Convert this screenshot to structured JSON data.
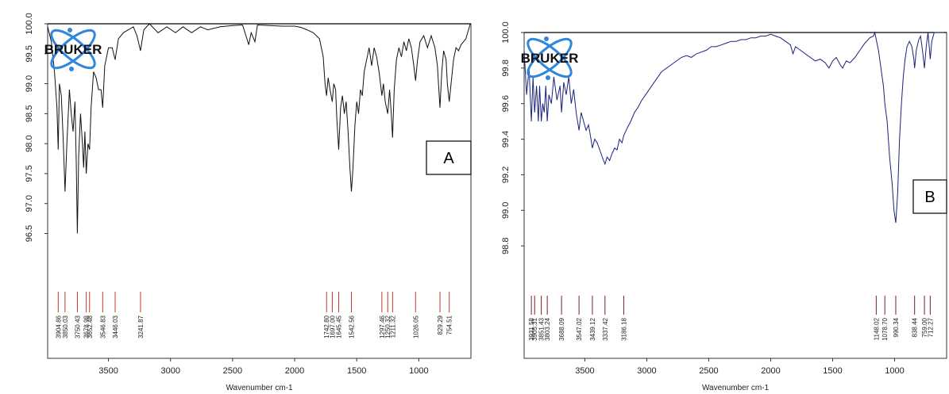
{
  "chart_data": [
    {
      "type": "line",
      "panel_label": "A",
      "logo_text": "BRUKER",
      "xlabel": "Wavenumber cm-1",
      "ylabel": "",
      "xlim": [
        3990,
        580
      ],
      "ylim": [
        95.7,
        100.0
      ],
      "x_ticks": [
        3500,
        3000,
        2500,
        2000,
        1500,
        1000
      ],
      "x_tick_labels": [
        "3500",
        "3000",
        "2500",
        "2000",
        "1500",
        "1000"
      ],
      "y_ticks": [
        96.5,
        97.0,
        97.5,
        98.0,
        98.5,
        99.0,
        99.5,
        100.0
      ],
      "y_tick_labels": [
        "96.5",
        "97.0",
        "97.5",
        "98.0",
        "98.5",
        "99.0",
        "99.5",
        "100.0"
      ],
      "line_color": "#111111",
      "peak_marker_color": "#c0392b",
      "peaks": [
        {
          "x": 3904.86,
          "label": "3904.86"
        },
        {
          "x": 3850.03,
          "label": "3850.03"
        },
        {
          "x": 3750.43,
          "label": "3750.43"
        },
        {
          "x": 3678.98,
          "label": "3678.98"
        },
        {
          "x": 3652.48,
          "label": "3652.48"
        },
        {
          "x": 3546.83,
          "label": "3546.83"
        },
        {
          "x": 3446.03,
          "label": "3446.03"
        },
        {
          "x": 3241.87,
          "label": "3241.87"
        },
        {
          "x": 1742.8,
          "label": "1742.80"
        },
        {
          "x": 1697.0,
          "label": "1697.00"
        },
        {
          "x": 1645.45,
          "label": "1645.45"
        },
        {
          "x": 1542.56,
          "label": "1542.56"
        },
        {
          "x": 1297.46,
          "label": "1297.46"
        },
        {
          "x": 1250.32,
          "label": "1250.32"
        },
        {
          "x": 1211.32,
          "label": "1211.32"
        },
        {
          "x": 1026.05,
          "label": "1026.05"
        },
        {
          "x": 829.29,
          "label": "829.29"
        },
        {
          "x": 754.51,
          "label": "754.51"
        }
      ],
      "spectrum": [
        [
          3990,
          99.95
        ],
        [
          3960,
          99.7
        ],
        [
          3935,
          99.2
        ],
        [
          3915,
          98.6
        ],
        [
          3904.86,
          97.9
        ],
        [
          3895,
          99.0
        ],
        [
          3880,
          98.8
        ],
        [
          3865,
          98.1
        ],
        [
          3850.03,
          97.2
        ],
        [
          3835,
          98.0
        ],
        [
          3815,
          98.9
        ],
        [
          3800,
          98.5
        ],
        [
          3785,
          98.2
        ],
        [
          3770,
          98.7
        ],
        [
          3760,
          97.7
        ],
        [
          3750.43,
          96.5
        ],
        [
          3740,
          97.8
        ],
        [
          3725,
          98.5
        ],
        [
          3710,
          98.0
        ],
        [
          3700,
          97.6
        ],
        [
          3690,
          98.2
        ],
        [
          3678.98,
          97.5
        ],
        [
          3665,
          98.0
        ],
        [
          3652.48,
          97.9
        ],
        [
          3640,
          98.6
        ],
        [
          3620,
          99.2
        ],
        [
          3600,
          99.1
        ],
        [
          3580,
          98.9
        ],
        [
          3560,
          98.9
        ],
        [
          3546.83,
          98.6
        ],
        [
          3530,
          99.3
        ],
        [
          3500,
          99.6
        ],
        [
          3470,
          99.6
        ],
        [
          3446.03,
          99.4
        ],
        [
          3420,
          99.75
        ],
        [
          3380,
          99.85
        ],
        [
          3340,
          99.9
        ],
        [
          3300,
          99.95
        ],
        [
          3270,
          99.8
        ],
        [
          3241.87,
          99.55
        ],
        [
          3215,
          99.9
        ],
        [
          3170,
          100.0
        ],
        [
          3100,
          99.85
        ],
        [
          3030,
          99.95
        ],
        [
          2960,
          99.85
        ],
        [
          2900,
          99.95
        ],
        [
          2830,
          99.85
        ],
        [
          2760,
          99.95
        ],
        [
          2700,
          99.9
        ],
        [
          2600,
          99.95
        ],
        [
          2500,
          99.97
        ],
        [
          2420,
          99.98
        ],
        [
          2385,
          99.75
        ],
        [
          2370,
          99.65
        ],
        [
          2350,
          99.85
        ],
        [
          2320,
          99.7
        ],
        [
          2300,
          99.98
        ],
        [
          2200,
          99.97
        ],
        [
          2100,
          99.96
        ],
        [
          2000,
          99.96
        ],
        [
          1950,
          99.94
        ],
        [
          1900,
          99.9
        ],
        [
          1850,
          99.85
        ],
        [
          1800,
          99.75
        ],
        [
          1770,
          99.45
        ],
        [
          1755,
          99.0
        ],
        [
          1742.8,
          98.8
        ],
        [
          1730,
          99.1
        ],
        [
          1715,
          98.9
        ],
        [
          1697.0,
          98.7
        ],
        [
          1685,
          99.0
        ],
        [
          1670,
          98.9
        ],
        [
          1660,
          98.4
        ],
        [
          1645.45,
          97.9
        ],
        [
          1630,
          98.6
        ],
        [
          1615,
          98.8
        ],
        [
          1600,
          98.5
        ],
        [
          1585,
          98.7
        ],
        [
          1570,
          98.2
        ],
        [
          1555,
          97.6
        ],
        [
          1542.56,
          97.2
        ],
        [
          1530,
          97.6
        ],
        [
          1515,
          98.3
        ],
        [
          1500,
          98.7
        ],
        [
          1485,
          98.5
        ],
        [
          1470,
          98.9
        ],
        [
          1455,
          98.8
        ],
        [
          1440,
          99.2
        ],
        [
          1420,
          99.4
        ],
        [
          1400,
          99.6
        ],
        [
          1380,
          99.3
        ],
        [
          1360,
          99.6
        ],
        [
          1340,
          99.45
        ],
        [
          1320,
          99.2
        ],
        [
          1297.46,
          98.8
        ],
        [
          1285,
          99.0
        ],
        [
          1270,
          98.7
        ],
        [
          1250.32,
          98.5
        ],
        [
          1235,
          98.9
        ],
        [
          1222,
          98.5
        ],
        [
          1211.32,
          98.1
        ],
        [
          1198,
          98.9
        ],
        [
          1180,
          99.4
        ],
        [
          1160,
          99.6
        ],
        [
          1140,
          99.45
        ],
        [
          1120,
          99.7
        ],
        [
          1100,
          99.55
        ],
        [
          1080,
          99.75
        ],
        [
          1060,
          99.6
        ],
        [
          1040,
          99.3
        ],
        [
          1026.05,
          99.05
        ],
        [
          1010,
          99.4
        ],
        [
          990,
          99.7
        ],
        [
          960,
          99.8
        ],
        [
          930,
          99.6
        ],
        [
          900,
          99.8
        ],
        [
          870,
          99.6
        ],
        [
          850,
          99.3
        ],
        [
          829.29,
          98.6
        ],
        [
          815,
          99.2
        ],
        [
          800,
          99.55
        ],
        [
          780,
          99.4
        ],
        [
          770,
          99.0
        ],
        [
          754.51,
          98.7
        ],
        [
          740,
          99.0
        ],
        [
          720,
          99.4
        ],
        [
          700,
          99.6
        ],
        [
          680,
          99.55
        ],
        [
          660,
          99.65
        ],
        [
          640,
          99.7
        ],
        [
          620,
          99.75
        ],
        [
          600,
          99.9
        ],
        [
          585,
          100.0
        ]
      ]
    },
    {
      "type": "line",
      "panel_label": "B",
      "logo_text": "BRUKER",
      "xlabel": "Wavenumber cm-1",
      "ylabel": "",
      "xlim": [
        3990,
        580
      ],
      "ylim": [
        98.6,
        100.0
      ],
      "x_ticks": [
        3500,
        3000,
        2500,
        2000,
        1500,
        1000
      ],
      "x_tick_labels": [
        "3500",
        "3000",
        "2500",
        "2000",
        "1500",
        "1000"
      ],
      "y_ticks": [
        98.8,
        99.0,
        99.2,
        99.4,
        99.6,
        99.8,
        100.0
      ],
      "y_tick_labels": [
        "98.8",
        "99.0",
        "99.2",
        "99.4",
        "99.6",
        "99.8",
        "100.0"
      ],
      "line_color": "#1a237e",
      "peak_marker_color": "#7b1f1f",
      "peaks": [
        {
          "x": 3931.58,
          "label": "3931.58"
        },
        {
          "x": 3905.31,
          "label": "3905.31"
        },
        {
          "x": 3851.43,
          "label": "3851.43"
        },
        {
          "x": 3803.24,
          "label": "3803.24"
        },
        {
          "x": 3688.09,
          "label": "3688.09"
        },
        {
          "x": 3547.02,
          "label": "3547.02"
        },
        {
          "x": 3439.12,
          "label": "3439.12"
        },
        {
          "x": 3337.42,
          "label": "3337.42"
        },
        {
          "x": 3186.18,
          "label": "3186.18"
        },
        {
          "x": 1148.02,
          "label": "1148.02"
        },
        {
          "x": 1078.7,
          "label": "1078.70"
        },
        {
          "x": 990.34,
          "label": "990.34"
        },
        {
          "x": 838.44,
          "label": "838.44"
        },
        {
          "x": 759.0,
          "label": "759.00"
        },
        {
          "x": 712.27,
          "label": "712.27"
        }
      ],
      "spectrum": [
        [
          3990,
          99.9
        ],
        [
          3970,
          99.65
        ],
        [
          3950,
          99.8
        ],
        [
          3931.58,
          99.5
        ],
        [
          3918,
          99.75
        ],
        [
          3905.31,
          99.55
        ],
        [
          3890,
          99.7
        ],
        [
          3875,
          99.5
        ],
        [
          3865,
          99.7
        ],
        [
          3851.43,
          99.5
        ],
        [
          3840,
          99.6
        ],
        [
          3828,
          99.55
        ],
        [
          3815,
          99.7
        ],
        [
          3803.24,
          99.5
        ],
        [
          3790,
          99.65
        ],
        [
          3770,
          99.6
        ],
        [
          3750,
          99.75
        ],
        [
          3725,
          99.62
        ],
        [
          3700,
          99.7
        ],
        [
          3688.09,
          99.55
        ],
        [
          3670,
          99.72
        ],
        [
          3650,
          99.65
        ],
        [
          3630,
          99.75
        ],
        [
          3610,
          99.6
        ],
        [
          3590,
          99.68
        ],
        [
          3570,
          99.55
        ],
        [
          3547.02,
          99.45
        ],
        [
          3530,
          99.55
        ],
        [
          3510,
          99.5
        ],
        [
          3490,
          99.45
        ],
        [
          3470,
          99.48
        ],
        [
          3450,
          99.4
        ],
        [
          3439.12,
          99.35
        ],
        [
          3420,
          99.4
        ],
        [
          3400,
          99.38
        ],
        [
          3380,
          99.34
        ],
        [
          3360,
          99.3
        ],
        [
          3337.42,
          99.26
        ],
        [
          3320,
          99.3
        ],
        [
          3300,
          99.28
        ],
        [
          3280,
          99.32
        ],
        [
          3260,
          99.35
        ],
        [
          3240,
          99.34
        ],
        [
          3220,
          99.4
        ],
        [
          3200,
          99.38
        ],
        [
          3186.18,
          99.42
        ],
        [
          3160,
          99.46
        ],
        [
          3130,
          99.5
        ],
        [
          3100,
          99.55
        ],
        [
          3070,
          99.58
        ],
        [
          3040,
          99.62
        ],
        [
          3000,
          99.66
        ],
        [
          2960,
          99.7
        ],
        [
          2920,
          99.74
        ],
        [
          2880,
          99.78
        ],
        [
          2840,
          99.8
        ],
        [
          2800,
          99.82
        ],
        [
          2760,
          99.84
        ],
        [
          2720,
          99.86
        ],
        [
          2680,
          99.87
        ],
        [
          2640,
          99.86
        ],
        [
          2600,
          99.88
        ],
        [
          2560,
          99.89
        ],
        [
          2520,
          99.9
        ],
        [
          2480,
          99.92
        ],
        [
          2440,
          99.92
        ],
        [
          2400,
          99.93
        ],
        [
          2360,
          99.94
        ],
        [
          2320,
          99.95
        ],
        [
          2280,
          99.95
        ],
        [
          2240,
          99.96
        ],
        [
          2200,
          99.96
        ],
        [
          2160,
          99.97
        ],
        [
          2120,
          99.97
        ],
        [
          2080,
          99.98
        ],
        [
          2040,
          99.98
        ],
        [
          2000,
          99.99
        ],
        [
          1960,
          99.98
        ],
        [
          1920,
          99.97
        ],
        [
          1880,
          99.95
        ],
        [
          1840,
          99.93
        ],
        [
          1820,
          99.88
        ],
        [
          1800,
          99.92
        ],
        [
          1760,
          99.9
        ],
        [
          1720,
          99.88
        ],
        [
          1680,
          99.86
        ],
        [
          1640,
          99.84
        ],
        [
          1600,
          99.85
        ],
        [
          1560,
          99.83
        ],
        [
          1530,
          99.8
        ],
        [
          1500,
          99.84
        ],
        [
          1470,
          99.86
        ],
        [
          1440,
          99.82
        ],
        [
          1420,
          99.8
        ],
        [
          1390,
          99.84
        ],
        [
          1360,
          99.83
        ],
        [
          1320,
          99.86
        ],
        [
          1280,
          99.9
        ],
        [
          1240,
          99.94
        ],
        [
          1200,
          99.97
        ],
        [
          1170,
          99.98
        ],
        [
          1160,
          100.0
        ],
        [
          1148.02,
          99.96
        ],
        [
          1130,
          99.9
        ],
        [
          1110,
          99.8
        ],
        [
          1090,
          99.7
        ],
        [
          1078.7,
          99.6
        ],
        [
          1060,
          99.5
        ],
        [
          1040,
          99.3
        ],
        [
          1020,
          99.15
        ],
        [
          1005,
          99.0
        ],
        [
          990.34,
          98.93
        ],
        [
          975,
          99.1
        ],
        [
          960,
          99.4
        ],
        [
          945,
          99.6
        ],
        [
          930,
          99.75
        ],
        [
          915,
          99.85
        ],
        [
          900,
          99.92
        ],
        [
          880,
          99.95
        ],
        [
          860,
          99.92
        ],
        [
          845,
          99.85
        ],
        [
          838.44,
          99.8
        ],
        [
          825,
          99.9
        ],
        [
          805,
          99.96
        ],
        [
          790,
          99.98
        ],
        [
          775,
          99.9
        ],
        [
          759.0,
          99.8
        ],
        [
          745,
          99.92
        ],
        [
          730,
          100.0
        ],
        [
          712.27,
          99.85
        ],
        [
          700,
          99.95
        ],
        [
          680,
          100.0
        ],
        [
          640,
          100.0
        ],
        [
          600,
          100.0
        ]
      ]
    }
  ]
}
